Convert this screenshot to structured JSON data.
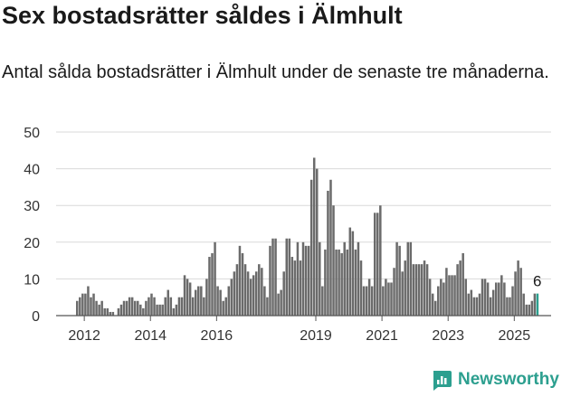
{
  "header": {
    "title": "Sex bostadsrätter såldes i Älmhult",
    "subtitle": "Antal sålda bostadsrätter i Älmhult under de senaste tre månaderna."
  },
  "brand": {
    "name": "Newsworthy",
    "icon": "newsworthy-logo-icon",
    "color": "#2c9f8f"
  },
  "chart_data": {
    "type": "bar",
    "title": "Sex bostadsrätter såldes i Älmhult",
    "subtitle": "Antal sålda bostadsrätter i Älmhult under de senaste tre månaderna.",
    "xlabel": "",
    "ylabel": "",
    "ylim": [
      0,
      50
    ],
    "yticks": [
      "0",
      "10",
      "20",
      "30",
      "40",
      "50"
    ],
    "xticks": [
      "2012",
      "2014",
      "2016",
      "2019",
      "2021",
      "2023",
      "2025"
    ],
    "x_start": "2011-10",
    "x_interval": "month",
    "bar_color": "#6b6b6b",
    "highlight_color": "#2c9f8f",
    "grid": true,
    "annotation": "6",
    "values": [
      4,
      5,
      6,
      6,
      8,
      5,
      6,
      4,
      3,
      4,
      2,
      2,
      1,
      1,
      0,
      2,
      3,
      4,
      4,
      5,
      5,
      4,
      4,
      3,
      2,
      4,
      5,
      6,
      5,
      3,
      3,
      3,
      5,
      7,
      5,
      2,
      3,
      5,
      5,
      11,
      10,
      9,
      5,
      7,
      8,
      8,
      5,
      10,
      16,
      17,
      20,
      8,
      7,
      4,
      5,
      8,
      10,
      12,
      14,
      19,
      17,
      14,
      12,
      10,
      11,
      12,
      14,
      13,
      8,
      5,
      19,
      21,
      21,
      6,
      7,
      12,
      21,
      21,
      16,
      15,
      20,
      15,
      20,
      19,
      19,
      37,
      43,
      40,
      20,
      8,
      18,
      34,
      37,
      30,
      18,
      18,
      17,
      20,
      18,
      24,
      23,
      18,
      20,
      15,
      8,
      8,
      10,
      8,
      28,
      28,
      30,
      8,
      10,
      9,
      9,
      13,
      20,
      19,
      12,
      15,
      20,
      20,
      14,
      14,
      14,
      14,
      15,
      14,
      10,
      6,
      4,
      8,
      10,
      9,
      13,
      11,
      11,
      11,
      14,
      15,
      17,
      10,
      6,
      7,
      5,
      5,
      6,
      10,
      10,
      9,
      5,
      7,
      9,
      9,
      11,
      9,
      5,
      5,
      8,
      12,
      15,
      13,
      6,
      3,
      3,
      4,
      6,
      6
    ],
    "highlight_last": 1
  }
}
